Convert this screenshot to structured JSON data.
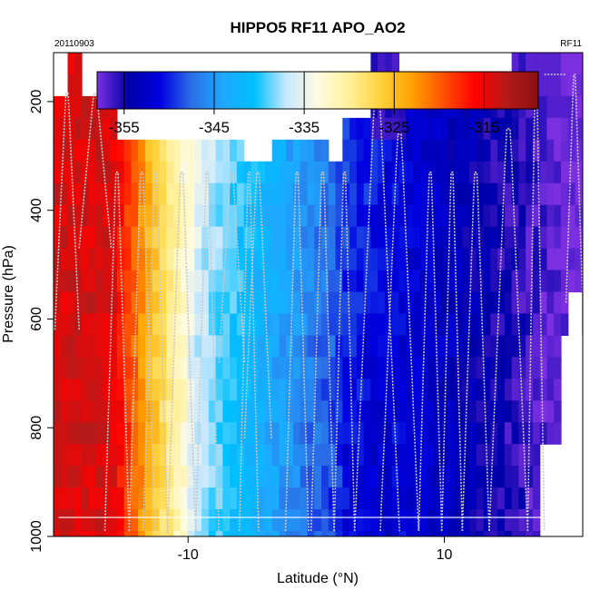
{
  "chart_data": {
    "type": "heatmap",
    "title": "HIPPO5 RF11 APO_AO2",
    "date_label": "20110903",
    "flight_label": "RF11",
    "xlabel": "Latitude (°N)",
    "ylabel": "Pressure (hPa)",
    "xlim": [
      -20.5,
      20.8
    ],
    "ylim": [
      1000,
      110
    ],
    "x_ticks": [
      -10,
      10
    ],
    "y_ticks": [
      200,
      400,
      600,
      800,
      1000
    ],
    "reference_line_pressure": 965,
    "colorbar": {
      "range": [
        -358,
        -309
      ],
      "ticks": [
        -355,
        -345,
        -335,
        -325,
        -315
      ],
      "colors": [
        "#7b2fe0",
        "#0000a8",
        "#0000e0",
        "#2b6fe6",
        "#1ea8ff",
        "#00c0ff",
        "#c8e8ff",
        "#fffbe0",
        "#fff09a",
        "#ffd23c",
        "#ffa000",
        "#ff5000",
        "#ff0000",
        "#b41a1a",
        "#8b1010"
      ]
    },
    "profiles": [
      {
        "lat_start": -20.4,
        "lat_end": -18.5,
        "p_bottom": 620,
        "p_top": 185
      },
      {
        "lat_start": -18.5,
        "lat_end": -16.0,
        "p_bottom": 470,
        "p_top": 185
      },
      {
        "lat_start": -16.5,
        "lat_end": -14.6,
        "p_bottom": 990,
        "p_top": 330
      },
      {
        "lat_start": -14.6,
        "lat_end": -12.6,
        "p_bottom": 990,
        "p_top": 330
      },
      {
        "lat_start": -13.5,
        "lat_end": -11.6,
        "p_bottom": 990,
        "p_top": 330
      },
      {
        "lat_start": -11.6,
        "lat_end": -9.4,
        "p_bottom": 995,
        "p_top": 330
      },
      {
        "lat_start": -9.4,
        "lat_end": -7.6,
        "p_bottom": 990,
        "p_top": 330
      },
      {
        "lat_start": -7.6,
        "lat_end": -5.6,
        "p_bottom": 680,
        "p_top": 330
      },
      {
        "lat_start": -5.6,
        "lat_end": -3.5,
        "p_bottom": 820,
        "p_top": 330
      },
      {
        "lat_start": -6.0,
        "lat_end": -4.5,
        "p_bottom": 990,
        "p_top": 330
      },
      {
        "lat_start": -2.4,
        "lat_end": -0.6,
        "p_bottom": 990,
        "p_top": 330
      },
      {
        "lat_start": -0.4,
        "lat_end": 1.4,
        "p_bottom": 990,
        "p_top": 330
      },
      {
        "lat_start": 1.4,
        "lat_end": 3.0,
        "p_bottom": 990,
        "p_top": 330
      },
      {
        "lat_start": 3.0,
        "lat_end": 6.5,
        "p_bottom": 990,
        "p_top": 175
      },
      {
        "lat_start": 5.0,
        "lat_end": 8.0,
        "p_bottom": 990,
        "p_top": 260
      },
      {
        "lat_start": 8.0,
        "lat_end": 9.8,
        "p_bottom": 990,
        "p_top": 330
      },
      {
        "lat_start": 9.8,
        "lat_end": 11.4,
        "p_bottom": 990,
        "p_top": 330
      },
      {
        "lat_start": 11.4,
        "lat_end": 13.5,
        "p_bottom": 990,
        "p_top": 330
      },
      {
        "lat_start": 13.5,
        "lat_end": 16.5,
        "p_bottom": 990,
        "p_top": 250
      },
      {
        "lat_start": 16.5,
        "lat_end": 17.8,
        "p_bottom": 990,
        "p_top": 150
      },
      {
        "lat_start": 17.8,
        "lat_end": 19.5,
        "p_bottom": 150,
        "p_top": 150
      },
      {
        "lat_start": 19.5,
        "lat_end": 20.8,
        "p_bottom": 570,
        "p_top": 150
      }
    ]
  }
}
